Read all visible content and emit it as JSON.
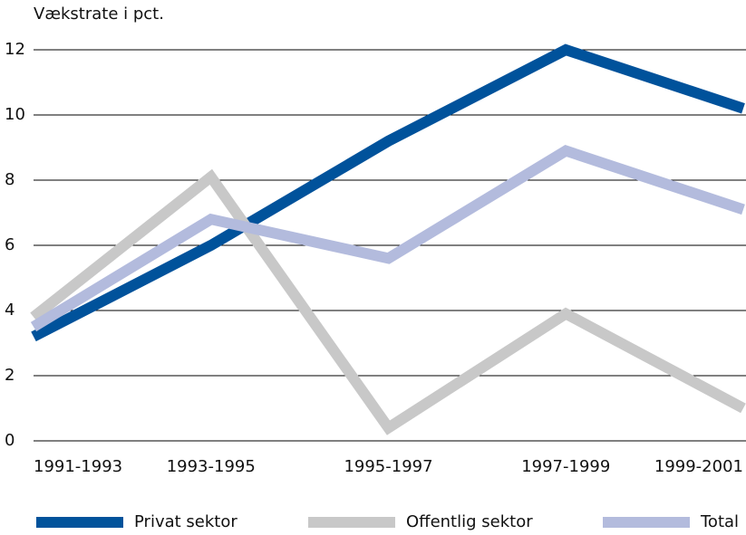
{
  "chart_data": {
    "type": "line",
    "ylabel": "Vækstrate i pct.",
    "categories": [
      "1991-1993",
      "1993-1995",
      "1995-1997",
      "1997-1999",
      "1999-2001"
    ],
    "series": [
      {
        "name": "Privat sektor",
        "color": "#00529b",
        "values": [
          3.2,
          6.0,
          9.2,
          12.0,
          10.2
        ]
      },
      {
        "name": "Offentlig sektor",
        "color": "#c8c8c8",
        "values": [
          3.8,
          8.1,
          0.4,
          3.9,
          1.0
        ]
      },
      {
        "name": "Total",
        "color": "#b3bbdd",
        "values": [
          3.5,
          6.8,
          5.6,
          8.9,
          7.1
        ]
      }
    ],
    "ylim": [
      0,
      12
    ],
    "yticks": [
      0,
      2,
      4,
      6,
      8,
      10,
      12
    ],
    "grid": true,
    "legend": "bottom"
  }
}
